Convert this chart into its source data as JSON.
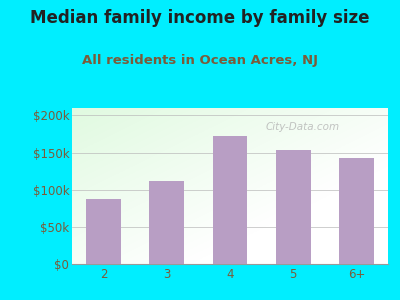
{
  "title": "Median family income by family size",
  "subtitle": "All residents in Ocean Acres, NJ",
  "categories": [
    "2",
    "3",
    "4",
    "5",
    "6+"
  ],
  "values": [
    87000,
    112000,
    172000,
    153000,
    143000
  ],
  "bar_color": "#b89ec4",
  "background_outer": "#00eeff",
  "title_color": "#222222",
  "subtitle_color": "#7a5c3a",
  "tick_label_color": "#7a5c3a",
  "ylim": [
    0,
    210000
  ],
  "yticks": [
    0,
    50000,
    100000,
    150000,
    200000
  ],
  "ytick_labels": [
    "$0",
    "$50k",
    "$100k",
    "$150k",
    "$200k"
  ],
  "watermark": "City-Data.com",
  "title_fontsize": 12,
  "subtitle_fontsize": 9.5,
  "tick_fontsize": 8.5
}
